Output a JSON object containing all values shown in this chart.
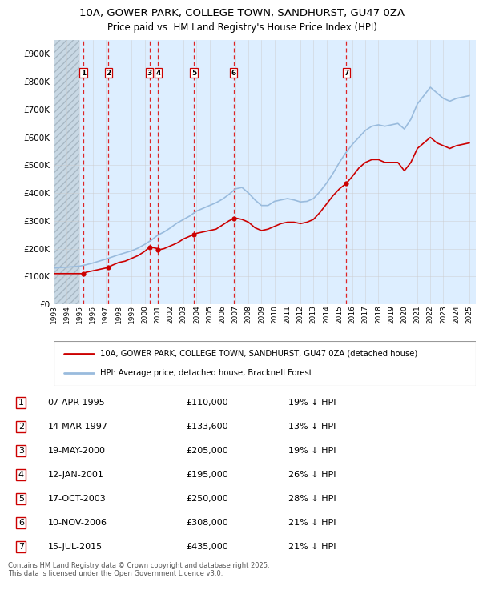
{
  "title_line1": "10A, GOWER PARK, COLLEGE TOWN, SANDHURST, GU47 0ZA",
  "title_line2": "Price paid vs. HM Land Registry's House Price Index (HPI)",
  "background_color": "#ffffff",
  "chart_bg_color": "#ddeeff",
  "legend_label_red": "10A, GOWER PARK, COLLEGE TOWN, SANDHURST, GU47 0ZA (detached house)",
  "legend_label_blue": "HPI: Average price, detached house, Bracknell Forest",
  "footer_text": "Contains HM Land Registry data © Crown copyright and database right 2025.\nThis data is licensed under the Open Government Licence v3.0.",
  "transactions": [
    {
      "num": 1,
      "date": "07-APR-1995",
      "price": 110000,
      "hpi_pct": "19%",
      "x_year": 1995.27
    },
    {
      "num": 2,
      "date": "14-MAR-1997",
      "price": 133600,
      "hpi_pct": "13%",
      "x_year": 1997.21
    },
    {
      "num": 3,
      "date": "19-MAY-2000",
      "price": 205000,
      "hpi_pct": "19%",
      "x_year": 2000.38
    },
    {
      "num": 4,
      "date": "12-JAN-2001",
      "price": 195000,
      "hpi_pct": "26%",
      "x_year": 2001.04
    },
    {
      "num": 5,
      "date": "17-OCT-2003",
      "price": 250000,
      "hpi_pct": "28%",
      "x_year": 2003.79
    },
    {
      "num": 6,
      "date": "10-NOV-2006",
      "price": 308000,
      "hpi_pct": "21%",
      "x_year": 2006.86
    },
    {
      "num": 7,
      "date": "15-JUL-2015",
      "price": 435000,
      "hpi_pct": "21%",
      "x_year": 2015.54
    }
  ],
  "red_line_x": [
    1993.0,
    1993.5,
    1994.0,
    1994.5,
    1995.0,
    1995.27,
    1995.5,
    1996.0,
    1996.5,
    1997.0,
    1997.21,
    1997.5,
    1998.0,
    1998.5,
    1999.0,
    1999.5,
    2000.0,
    2000.38,
    2000.5,
    2001.0,
    2001.04,
    2001.5,
    2002.0,
    2002.5,
    2003.0,
    2003.5,
    2003.79,
    2004.0,
    2004.5,
    2005.0,
    2005.5,
    2006.0,
    2006.5,
    2006.86,
    2007.0,
    2007.5,
    2008.0,
    2008.5,
    2009.0,
    2009.5,
    2010.0,
    2010.5,
    2011.0,
    2011.5,
    2012.0,
    2012.5,
    2013.0,
    2013.5,
    2014.0,
    2014.5,
    2015.0,
    2015.54,
    2016.0,
    2016.5,
    2017.0,
    2017.5,
    2018.0,
    2018.5,
    2019.0,
    2019.5,
    2020.0,
    2020.5,
    2021.0,
    2021.5,
    2022.0,
    2022.5,
    2023.0,
    2023.5,
    2024.0,
    2024.5,
    2025.0
  ],
  "red_line_y": [
    110000,
    110000,
    110000,
    110000,
    110000,
    110000,
    115000,
    120000,
    125000,
    130000,
    133600,
    140000,
    150000,
    155000,
    165000,
    175000,
    190000,
    205000,
    205000,
    200000,
    195000,
    200000,
    210000,
    220000,
    235000,
    245000,
    250000,
    255000,
    260000,
    265000,
    270000,
    285000,
    300000,
    308000,
    310000,
    305000,
    295000,
    275000,
    265000,
    270000,
    280000,
    290000,
    295000,
    295000,
    290000,
    295000,
    305000,
    330000,
    360000,
    390000,
    415000,
    435000,
    460000,
    490000,
    510000,
    520000,
    520000,
    510000,
    510000,
    510000,
    480000,
    510000,
    560000,
    580000,
    600000,
    580000,
    570000,
    560000,
    570000,
    575000,
    580000
  ],
  "blue_line_x": [
    1993.0,
    1993.5,
    1994.0,
    1994.5,
    1995.0,
    1995.5,
    1996.0,
    1996.5,
    1997.0,
    1997.5,
    1998.0,
    1998.5,
    1999.0,
    1999.5,
    2000.0,
    2000.5,
    2001.0,
    2001.5,
    2002.0,
    2002.5,
    2003.0,
    2003.5,
    2004.0,
    2004.5,
    2005.0,
    2005.5,
    2006.0,
    2006.5,
    2007.0,
    2007.5,
    2008.0,
    2008.5,
    2009.0,
    2009.5,
    2010.0,
    2010.5,
    2011.0,
    2011.5,
    2012.0,
    2012.5,
    2013.0,
    2013.5,
    2014.0,
    2014.5,
    2015.0,
    2015.5,
    2016.0,
    2016.5,
    2017.0,
    2017.5,
    2018.0,
    2018.5,
    2019.0,
    2019.5,
    2020.0,
    2020.5,
    2021.0,
    2021.5,
    2022.0,
    2022.5,
    2023.0,
    2023.5,
    2024.0,
    2024.5,
    2025.0
  ],
  "blue_line_y": [
    130000,
    132000,
    133000,
    135000,
    137000,
    142000,
    148000,
    155000,
    162000,
    170000,
    178000,
    185000,
    192000,
    202000,
    215000,
    230000,
    248000,
    260000,
    275000,
    292000,
    305000,
    318000,
    335000,
    345000,
    355000,
    365000,
    378000,
    395000,
    415000,
    420000,
    400000,
    375000,
    355000,
    355000,
    370000,
    375000,
    380000,
    375000,
    368000,
    370000,
    380000,
    405000,
    435000,
    470000,
    510000,
    545000,
    575000,
    600000,
    625000,
    640000,
    645000,
    640000,
    645000,
    650000,
    630000,
    665000,
    720000,
    750000,
    780000,
    760000,
    740000,
    730000,
    740000,
    745000,
    750000
  ],
  "xlim": [
    1993.0,
    2025.5
  ],
  "ylim": [
    0,
    950000
  ],
  "yticks": [
    0,
    100000,
    200000,
    300000,
    400000,
    500000,
    600000,
    700000,
    800000,
    900000
  ],
  "ytick_labels": [
    "£0",
    "£100K",
    "£200K",
    "£300K",
    "£400K",
    "£500K",
    "£600K",
    "£700K",
    "£800K",
    "£900K"
  ],
  "xtick_years": [
    1993,
    1994,
    1995,
    1996,
    1997,
    1998,
    1999,
    2000,
    2001,
    2002,
    2003,
    2004,
    2005,
    2006,
    2007,
    2008,
    2009,
    2010,
    2011,
    2012,
    2013,
    2014,
    2015,
    2016,
    2017,
    2018,
    2019,
    2020,
    2021,
    2022,
    2023,
    2024,
    2025
  ],
  "hatch_end_year": 1995.0,
  "red_color": "#cc0000",
  "blue_color": "#99bbdd",
  "dot_color": "#cc0000",
  "vline_color": "#dd0000",
  "grid_color": "#cccccc",
  "title_fontsize": 9.5,
  "subtitle_fontsize": 8.5
}
